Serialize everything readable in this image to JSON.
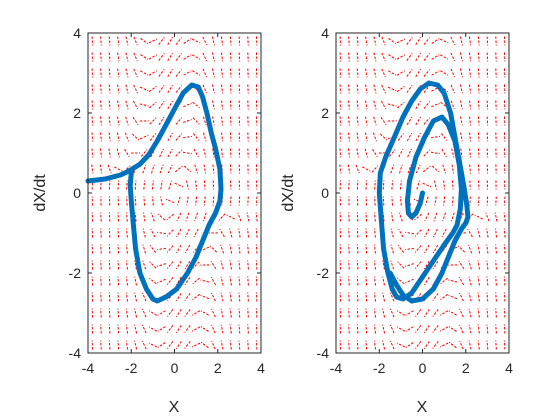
{
  "chart_data": [
    {
      "type": "line",
      "title": "",
      "xlabel": "X",
      "ylabel": "dX/dt",
      "xlim": [
        -4,
        4
      ],
      "ylim": [
        -4,
        4
      ],
      "xticks": [
        "-4",
        "-2",
        "0",
        "2",
        "4"
      ],
      "yticks": [
        "-4",
        "-2",
        "0",
        "2",
        "4"
      ],
      "grid": false,
      "legend": "none",
      "quiver": {
        "color": "#ff0000",
        "style": "dashed",
        "description": "direction field"
      },
      "series": [
        {
          "color": "#0072bd",
          "x": [
            -4.0,
            -3.2,
            -2.5,
            -2.1,
            -1.9,
            -1.6,
            -1.2,
            -0.8,
            -0.4,
            0.0,
            0.4,
            0.8,
            1.1,
            1.3,
            1.5,
            1.7,
            1.9,
            2.1,
            2.15,
            2.1,
            1.9,
            1.6,
            1.3,
            1.0,
            0.6,
            0.1,
            -0.4,
            -0.8,
            -1.0,
            -1.3,
            -1.6,
            -1.8,
            -1.9,
            -2.0,
            -2.05,
            -2.0,
            -1.95
          ],
          "y": [
            0.3,
            0.35,
            0.45,
            0.55,
            0.62,
            0.72,
            0.95,
            1.3,
            1.7,
            2.1,
            2.5,
            2.7,
            2.65,
            2.4,
            2.0,
            1.5,
            1.1,
            0.6,
            0.1,
            -0.2,
            -0.5,
            -0.8,
            -1.2,
            -1.6,
            -2.0,
            -2.4,
            -2.6,
            -2.7,
            -2.65,
            -2.4,
            -2.0,
            -1.4,
            -0.8,
            -0.2,
            0.2,
            0.5,
            0.6
          ]
        }
      ]
    },
    {
      "type": "line",
      "title": "",
      "xlabel": "X",
      "ylabel": "dX/dt",
      "xlim": [
        -4,
        4
      ],
      "ylim": [
        -4,
        4
      ],
      "xticks": [
        "-4",
        "-2",
        "0",
        "2",
        "4"
      ],
      "yticks": [
        "-4",
        "-2",
        "0",
        "2",
        "4"
      ],
      "grid": false,
      "legend": "none",
      "quiver": {
        "color": "#ff0000",
        "style": "dashed",
        "description": "direction field"
      },
      "series": [
        {
          "color": "#0072bd",
          "x": [
            0.0,
            -0.1,
            -0.3,
            -0.5,
            -0.65,
            -0.7,
            -0.6,
            -0.3,
            0.1,
            0.5,
            0.9,
            1.2,
            1.5,
            1.7,
            1.8,
            1.75,
            1.6,
            1.4,
            1.0,
            0.5,
            0.0,
            -0.5,
            -0.9,
            -1.2,
            -1.4,
            -1.6,
            -1.8,
            -1.9,
            -2.0,
            -1.95,
            -1.7,
            -1.3,
            -0.9,
            -0.5,
            -0.1,
            0.3,
            0.7,
            1.0,
            1.3,
            1.5,
            1.7,
            1.9,
            2.05,
            2.1,
            2.0,
            1.8,
            1.5,
            1.2,
            0.9,
            0.5,
            0.0,
            -0.5,
            -0.9,
            -1.2,
            -1.5
          ],
          "y": [
            0.0,
            -0.25,
            -0.5,
            -0.6,
            -0.5,
            -0.2,
            0.3,
            0.9,
            1.4,
            1.8,
            1.9,
            1.7,
            1.3,
            0.7,
            0.1,
            -0.4,
            -0.8,
            -1.0,
            -1.3,
            -1.7,
            -2.1,
            -2.5,
            -2.65,
            -2.6,
            -2.4,
            -2.0,
            -1.4,
            -0.7,
            0.0,
            0.5,
            0.9,
            1.4,
            1.9,
            2.3,
            2.6,
            2.75,
            2.7,
            2.5,
            2.0,
            1.4,
            0.8,
            0.2,
            -0.3,
            -0.6,
            -0.75,
            -0.9,
            -1.2,
            -1.6,
            -2.0,
            -2.4,
            -2.65,
            -2.7,
            -2.55,
            -2.3,
            -2.0
          ]
        }
      ]
    }
  ]
}
